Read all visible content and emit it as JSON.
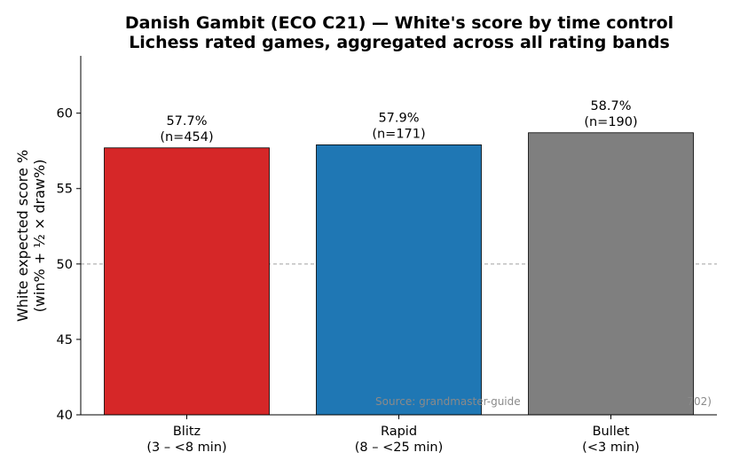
{
  "chart_data": {
    "type": "bar",
    "title_lines": [
      "Danish Gambit (ECO C21) — White's score by time control",
      "Lichess rated games, aggregated across all rating bands"
    ],
    "ylabel_lines": [
      "White expected score %",
      "(win% + ½ × draw%)"
    ],
    "categories": [
      [
        "Blitz",
        "(3 – <8 min)"
      ],
      [
        "Rapid",
        "(8 – <25 min)"
      ],
      [
        "Bullet",
        "(<3 min)"
      ]
    ],
    "values": [
      57.7,
      57.9,
      58.7
    ],
    "value_labels": [
      "57.7%",
      "57.9%",
      "58.7%"
    ],
    "n_labels": [
      "(n=454)",
      "(n=171)",
      "(n=190)"
    ],
    "colors": [
      "#d62728",
      "#1f77b4",
      "#7f7f7f"
    ],
    "ylim": [
      40,
      63.8
    ],
    "yticks": [
      40,
      45,
      50,
      55,
      60
    ],
    "reference_line": 50,
    "grid": false,
    "source_text": "Source: grandmaster-guide",
    "source_tail": "702)"
  }
}
